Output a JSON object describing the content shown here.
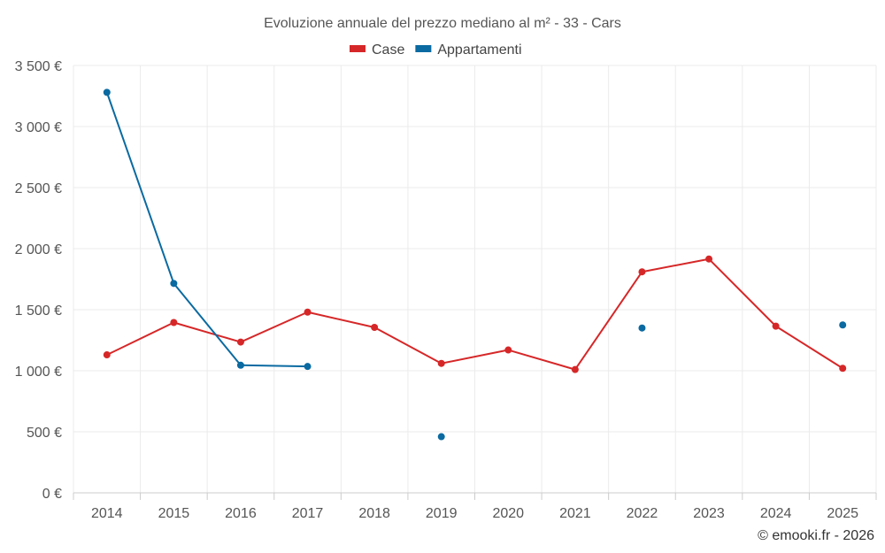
{
  "chart_data": {
    "type": "line",
    "title": "Evoluzione annuale del prezzo mediano al m² - 33 - Cars",
    "categories": [
      "2014",
      "2015",
      "2016",
      "2017",
      "2018",
      "2019",
      "2020",
      "2021",
      "2022",
      "2023",
      "2024",
      "2025"
    ],
    "ylim": [
      0,
      3500
    ],
    "yticks": [
      0,
      500,
      1000,
      1500,
      2000,
      2500,
      3000,
      3500
    ],
    "ytick_labels": [
      "0 €",
      "500 €",
      "1 000 €",
      "1 500 €",
      "2 000 €",
      "2 500 €",
      "3 000 €",
      "3 500 €"
    ],
    "grid": true,
    "legend_position": "top-center",
    "series": [
      {
        "name": "Case",
        "color": "#d62728",
        "values": [
          1130,
          1395,
          1235,
          1480,
          1355,
          1060,
          1170,
          1010,
          1810,
          1915,
          1365,
          1020
        ]
      },
      {
        "name": "Appartamenti",
        "color": "#0a6aa1",
        "values": [
          3280,
          1715,
          1045,
          1035,
          null,
          460,
          null,
          null,
          1350,
          null,
          null,
          1375
        ]
      }
    ]
  },
  "credit": "© emooki.fr - 2026"
}
